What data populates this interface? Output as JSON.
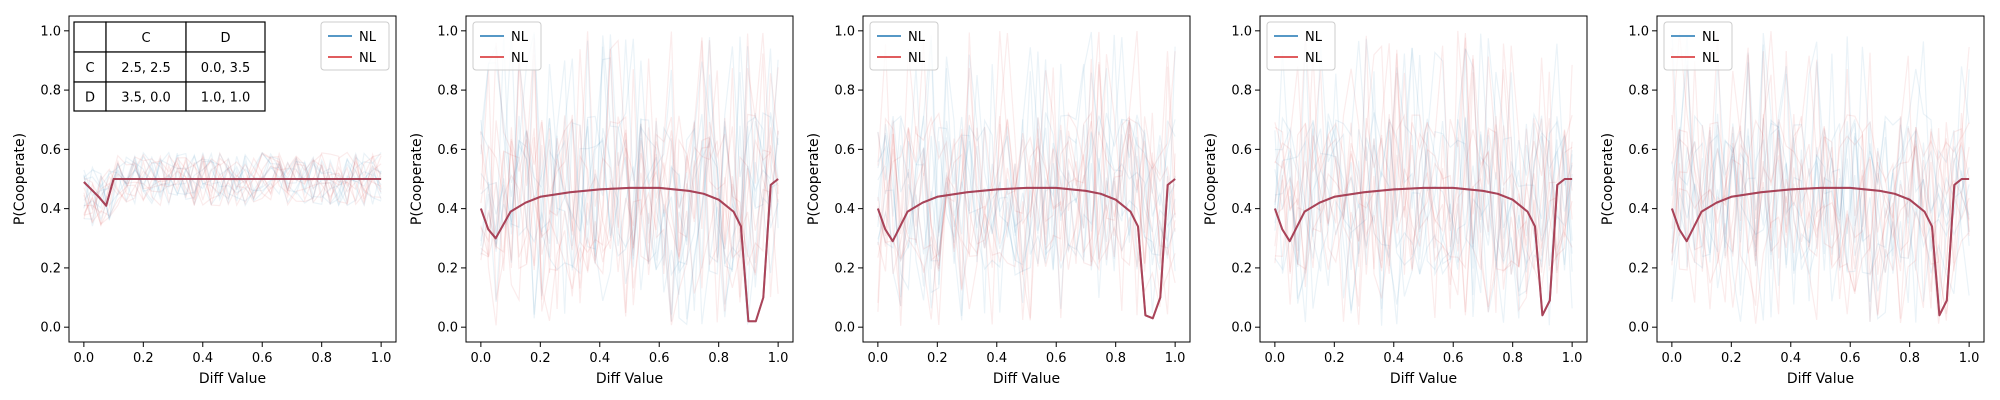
{
  "chart_data": [
    {
      "type": "line",
      "xlabel": "Diff Value",
      "ylabel": "P(Cooperate)",
      "xlim": [
        -0.05,
        1.05
      ],
      "ylim": [
        -0.05,
        1.05
      ],
      "xticks": [
        "0.0",
        "0.2",
        "0.4",
        "0.6",
        "0.8",
        "1.0"
      ],
      "yticks": [
        "0.0",
        "0.2",
        "0.4",
        "0.6",
        "0.8",
        "1.0"
      ],
      "grid": false,
      "legend": {
        "placement": "top-right",
        "entries": [
          {
            "label": "NL",
            "color": "#1f77b4"
          },
          {
            "label": "NL",
            "color": "#d62728"
          }
        ]
      },
      "payoff_table": {
        "header": [
          "",
          "C",
          "D"
        ],
        "rows": [
          [
            "C",
            "2.5, 2.5",
            "0.0, 3.5"
          ],
          [
            "D",
            "3.5, 0.0",
            "1.0, 1.0"
          ]
        ]
      },
      "x": [
        0.0,
        0.05,
        0.075,
        0.1,
        0.2,
        0.4,
        0.6,
        0.8,
        1.0
      ],
      "series": [
        {
          "color": "#1f77b4",
          "values": [
            0.49,
            0.44,
            0.41,
            0.5,
            0.5,
            0.5,
            0.5,
            0.5,
            0.5
          ]
        },
        {
          "color": "#d62728",
          "values": [
            0.49,
            0.44,
            0.41,
            0.5,
            0.5,
            0.5,
            0.5,
            0.5,
            0.5
          ]
        }
      ]
    },
    {
      "type": "line",
      "xlabel": "Diff Value",
      "ylabel": "P(Cooperate)",
      "xlim": [
        -0.05,
        1.05
      ],
      "ylim": [
        -0.05,
        1.05
      ],
      "xticks": [
        "0.0",
        "0.2",
        "0.4",
        "0.6",
        "0.8",
        "1.0"
      ],
      "yticks": [
        "0.0",
        "0.2",
        "0.4",
        "0.6",
        "0.8",
        "1.0"
      ],
      "grid": false,
      "legend": {
        "placement": "top-left",
        "entries": [
          {
            "label": "NL",
            "color": "#1f77b4"
          },
          {
            "label": "NL",
            "color": "#d62728"
          }
        ]
      },
      "x": [
        0.0,
        0.025,
        0.05,
        0.1,
        0.15,
        0.2,
        0.3,
        0.4,
        0.5,
        0.6,
        0.7,
        0.75,
        0.8,
        0.85,
        0.875,
        0.9,
        0.925,
        0.95,
        0.975,
        1.0
      ],
      "series": [
        {
          "color": "#1f77b4",
          "values": [
            0.4,
            0.33,
            0.3,
            0.39,
            0.42,
            0.44,
            0.455,
            0.465,
            0.47,
            0.47,
            0.46,
            0.45,
            0.43,
            0.39,
            0.34,
            0.02,
            0.02,
            0.1,
            0.48,
            0.5
          ]
        },
        {
          "color": "#d62728",
          "values": [
            0.4,
            0.33,
            0.3,
            0.39,
            0.42,
            0.44,
            0.455,
            0.465,
            0.47,
            0.47,
            0.46,
            0.45,
            0.43,
            0.39,
            0.34,
            0.02,
            0.02,
            0.1,
            0.48,
            0.5
          ]
        }
      ]
    },
    {
      "type": "line",
      "xlabel": "Diff Value",
      "ylabel": "P(Cooperate)",
      "xlim": [
        -0.05,
        1.05
      ],
      "ylim": [
        -0.05,
        1.05
      ],
      "xticks": [
        "0.0",
        "0.2",
        "0.4",
        "0.6",
        "0.8",
        "1.0"
      ],
      "yticks": [
        "0.0",
        "0.2",
        "0.4",
        "0.6",
        "0.8",
        "1.0"
      ],
      "grid": false,
      "legend": {
        "placement": "top-left",
        "entries": [
          {
            "label": "NL",
            "color": "#1f77b4"
          },
          {
            "label": "NL",
            "color": "#d62728"
          }
        ]
      },
      "x": [
        0.0,
        0.025,
        0.05,
        0.1,
        0.15,
        0.2,
        0.3,
        0.4,
        0.5,
        0.6,
        0.7,
        0.75,
        0.8,
        0.85,
        0.875,
        0.9,
        0.925,
        0.95,
        0.975,
        1.0
      ],
      "series": [
        {
          "color": "#1f77b4",
          "values": [
            0.4,
            0.33,
            0.29,
            0.39,
            0.42,
            0.44,
            0.455,
            0.465,
            0.47,
            0.47,
            0.46,
            0.45,
            0.43,
            0.39,
            0.34,
            0.04,
            0.03,
            0.1,
            0.48,
            0.5
          ]
        },
        {
          "color": "#d62728",
          "values": [
            0.4,
            0.33,
            0.29,
            0.39,
            0.42,
            0.44,
            0.455,
            0.465,
            0.47,
            0.47,
            0.46,
            0.45,
            0.43,
            0.39,
            0.34,
            0.04,
            0.03,
            0.1,
            0.48,
            0.5
          ]
        }
      ]
    },
    {
      "type": "line",
      "xlabel": "Diff Value",
      "ylabel": "P(Cooperate)",
      "xlim": [
        -0.05,
        1.05
      ],
      "ylim": [
        -0.05,
        1.05
      ],
      "xticks": [
        "0.0",
        "0.2",
        "0.4",
        "0.6",
        "0.8",
        "1.0"
      ],
      "yticks": [
        "0.0",
        "0.2",
        "0.4",
        "0.6",
        "0.8",
        "1.0"
      ],
      "grid": false,
      "legend": {
        "placement": "top-left",
        "entries": [
          {
            "label": "NL",
            "color": "#1f77b4"
          },
          {
            "label": "NL",
            "color": "#d62728"
          }
        ]
      },
      "x": [
        0.0,
        0.025,
        0.05,
        0.1,
        0.15,
        0.2,
        0.3,
        0.4,
        0.5,
        0.6,
        0.7,
        0.75,
        0.8,
        0.85,
        0.875,
        0.9,
        0.925,
        0.95,
        0.975,
        1.0
      ],
      "series": [
        {
          "color": "#1f77b4",
          "values": [
            0.4,
            0.33,
            0.29,
            0.39,
            0.42,
            0.44,
            0.455,
            0.465,
            0.47,
            0.47,
            0.46,
            0.45,
            0.43,
            0.39,
            0.34,
            0.04,
            0.09,
            0.48,
            0.5,
            0.5
          ]
        },
        {
          "color": "#d62728",
          "values": [
            0.4,
            0.33,
            0.29,
            0.39,
            0.42,
            0.44,
            0.455,
            0.465,
            0.47,
            0.47,
            0.46,
            0.45,
            0.43,
            0.39,
            0.34,
            0.04,
            0.09,
            0.48,
            0.5,
            0.5
          ]
        }
      ]
    },
    {
      "type": "line",
      "xlabel": "Diff Value",
      "ylabel": "P(Cooperate)",
      "xlim": [
        -0.05,
        1.05
      ],
      "ylim": [
        -0.05,
        1.05
      ],
      "xticks": [
        "0.0",
        "0.2",
        "0.4",
        "0.6",
        "0.8",
        "1.0"
      ],
      "yticks": [
        "0.0",
        "0.2",
        "0.4",
        "0.6",
        "0.8",
        "1.0"
      ],
      "grid": false,
      "legend": {
        "placement": "top-left",
        "entries": [
          {
            "label": "NL",
            "color": "#1f77b4"
          },
          {
            "label": "NL",
            "color": "#d62728"
          }
        ]
      },
      "x": [
        0.0,
        0.025,
        0.05,
        0.1,
        0.15,
        0.2,
        0.3,
        0.4,
        0.5,
        0.6,
        0.7,
        0.75,
        0.8,
        0.85,
        0.875,
        0.9,
        0.925,
        0.95,
        0.975,
        1.0
      ],
      "series": [
        {
          "color": "#1f77b4",
          "values": [
            0.4,
            0.33,
            0.29,
            0.39,
            0.42,
            0.44,
            0.455,
            0.465,
            0.47,
            0.47,
            0.46,
            0.45,
            0.43,
            0.39,
            0.34,
            0.04,
            0.09,
            0.48,
            0.5,
            0.5
          ]
        },
        {
          "color": "#d62728",
          "values": [
            0.4,
            0.33,
            0.29,
            0.39,
            0.42,
            0.44,
            0.455,
            0.465,
            0.47,
            0.47,
            0.46,
            0.45,
            0.43,
            0.39,
            0.34,
            0.04,
            0.09,
            0.48,
            0.5,
            0.5
          ]
        }
      ]
    }
  ]
}
